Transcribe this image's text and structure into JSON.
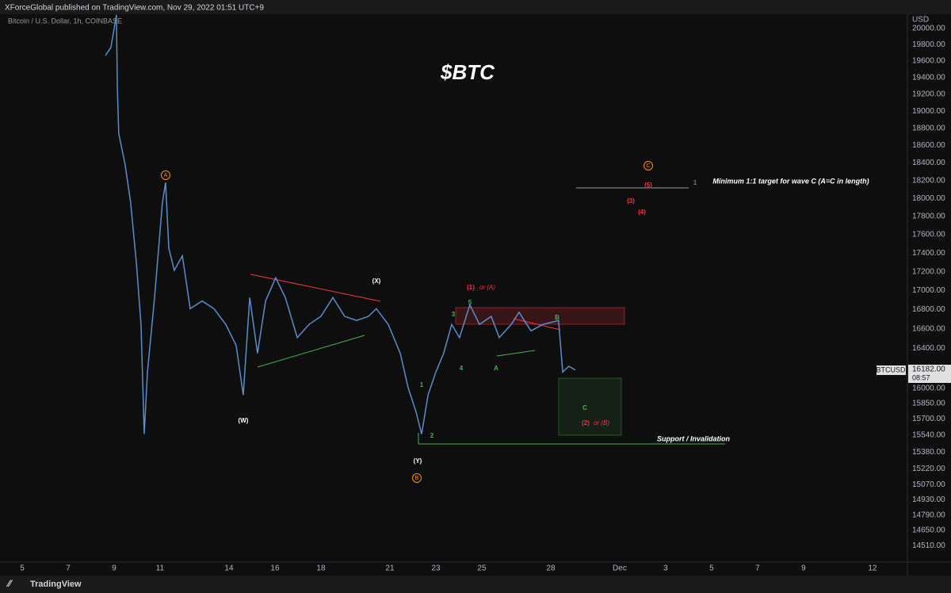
{
  "header": "XForceGlobal published on TradingView.com, Nov 29, 2022 01:51 UTC+9",
  "footer": "TradingView",
  "chart_data": {
    "type": "line",
    "title": "$BTC",
    "subtitle": "Bitcoin / U.S. Dollar, 1h, COINBASE",
    "y_axis_label": "USD",
    "log_scale": true,
    "grid": false,
    "symbol": "BTCUSD",
    "last_price_label": "16182.00",
    "countdown": "08:57",
    "x": [
      8.62,
      8.86,
      9.1,
      9.14,
      9.2,
      9.48,
      9.72,
      9.97,
      10.17,
      10.31,
      10.45,
      10.76,
      11.1,
      11.24,
      11.38,
      11.62,
      11.97,
      12.31,
      12.83,
      13.34,
      13.86,
      14.31,
      14.62,
      14.9,
      15.24,
      15.59,
      16.03,
      16.45,
      16.97,
      17.48,
      18,
      18.52,
      19.03,
      19.55,
      20.07,
      20.41,
      20.93,
      21.45,
      21.79,
      22.14,
      22.38,
      22.66,
      23,
      23.34,
      23.69,
      24.03,
      24.48,
      24.9,
      25.41,
      25.76,
      26.28,
      26.62,
      27.14,
      27.66,
      28.34,
      28.52,
      28.79,
      29.07
    ],
    "series": [
      {
        "name": "BTCUSD",
        "color": "#5b8dc9",
        "values": [
          19668,
          19765,
          20170,
          19295,
          18741,
          18379,
          17950,
          17290,
          16646,
          15552,
          16162,
          16926,
          17950,
          18177,
          17451,
          17214,
          17370,
          16810,
          16890,
          16810,
          16646,
          16431,
          15933,
          16926,
          16351,
          16890,
          17135,
          16926,
          16511,
          16646,
          16730,
          16926,
          16730,
          16687,
          16730,
          16810,
          16646,
          16351,
          16010,
          15766,
          15552,
          15933,
          16162,
          16351,
          16646,
          16511,
          16850,
          16646,
          16730,
          16511,
          16646,
          16772,
          16580,
          16646,
          16687,
          16162,
          16220,
          16182
        ]
      }
    ],
    "xlim": [
      4.034,
      43.52
    ],
    "xticks": [
      5,
      7,
      9,
      11,
      14,
      16,
      18,
      21,
      23,
      25,
      28,
      {
        "value": 31,
        "label": "Dec"
      },
      {
        "value": 33,
        "label": "3"
      },
      {
        "value": 35,
        "label": "5"
      },
      {
        "value": 37,
        "label": "7"
      },
      {
        "value": 39,
        "label": "9"
      },
      {
        "value": 42,
        "label": "12"
      }
    ],
    "ylim": [
      14358,
      20177
    ],
    "yticks": [
      {
        "value": 20000,
        "label": "20000.00"
      },
      {
        "value": 19800,
        "label": "19800.00"
      },
      {
        "value": 19600,
        "label": "19600.00"
      },
      {
        "value": 19400,
        "label": "19400.00"
      },
      {
        "value": 19200,
        "label": "19200.00"
      },
      {
        "value": 19000,
        "label": "19000.00"
      },
      {
        "value": 18800,
        "label": "18800.00"
      },
      {
        "value": 18600,
        "label": "18600.00"
      },
      {
        "value": 18400,
        "label": "18400.00"
      },
      {
        "value": 18200,
        "label": "18200.00"
      },
      {
        "value": 18000,
        "label": "18000.00"
      },
      {
        "value": 17800,
        "label": "17800.00"
      },
      {
        "value": 17600,
        "label": "17600.00"
      },
      {
        "value": 17400,
        "label": "17400.00"
      },
      {
        "value": 17200,
        "label": "17200.00"
      },
      {
        "value": 17000,
        "label": "17000.00"
      },
      {
        "value": 16800,
        "label": "16800.00"
      },
      {
        "value": 16600,
        "label": "16600.00"
      },
      {
        "value": 16400,
        "label": "16400.00"
      },
      {
        "value": 16000,
        "label": "16000.00"
      },
      {
        "value": 15850,
        "label": "15850.00"
      },
      {
        "value": 15700,
        "label": "15700.00"
      },
      {
        "value": 15540,
        "label": "15540.00"
      },
      {
        "value": 15380,
        "label": "15380.00"
      },
      {
        "value": 15220,
        "label": "15220.00"
      },
      {
        "value": 15070,
        "label": "15070.00"
      },
      {
        "value": 14930,
        "label": "14930.00"
      },
      {
        "value": 14790,
        "label": "14790.00"
      },
      {
        "value": 14650,
        "label": "14650.00"
      },
      {
        "value": 14510,
        "label": "14510.00"
      }
    ],
    "annotations": [
      {
        "text": "A",
        "color": "#f7931a"
      },
      {
        "text": "B",
        "color": "#f7931a"
      },
      {
        "text": "C",
        "color": "#f7931a"
      },
      {
        "text": "(W)",
        "color": "#ffffff"
      },
      {
        "text": "(X)",
        "color": "#ffffff"
      },
      {
        "text": "(Y)",
        "color": "#ffffff"
      },
      {
        "text": "(1)",
        "color": "#f23645"
      },
      {
        "text": "or (A)",
        "color": "#f23645"
      },
      {
        "text": "5",
        "color": "#4caf50"
      },
      {
        "text": "3",
        "color": "#4caf50"
      },
      {
        "text": "4",
        "color": "#4caf50"
      },
      {
        "text": "1",
        "color": "#4caf50"
      },
      {
        "text": "2",
        "color": "#4caf50"
      },
      {
        "text": "A",
        "color": "#4caf50"
      },
      {
        "text": "B",
        "color": "#4caf50"
      },
      {
        "text": "C",
        "color": "#4caf50"
      },
      {
        "text": "(2)",
        "color": "#f23645"
      },
      {
        "text": "or (B)",
        "color": "#f23645"
      },
      {
        "text": "(5)",
        "color": "#f23645"
      },
      {
        "text": "(3)",
        "color": "#f23645"
      },
      {
        "text": "(4)",
        "color": "#f23645"
      },
      {
        "text": "1",
        "color": "#787b86"
      },
      {
        "text": "Minimum 1:1 target for wave C (A=C in length)",
        "color": "#ffffff"
      },
      {
        "text": "Support / Invalidation",
        "color": "#ffffff"
      }
    ]
  }
}
